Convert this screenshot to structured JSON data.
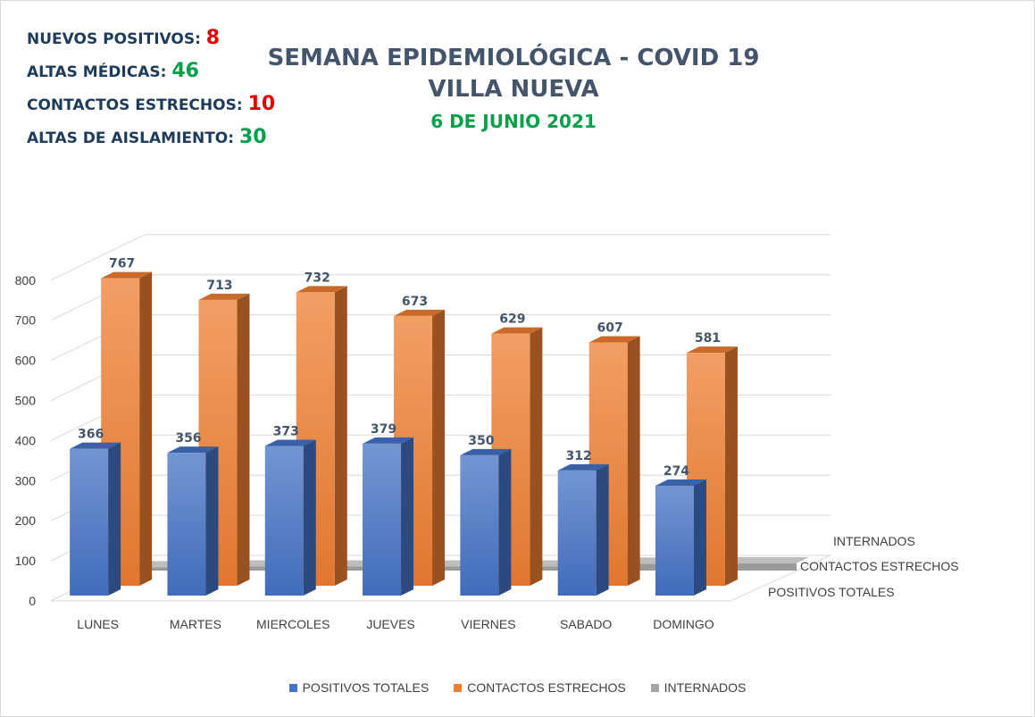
{
  "stats": [
    {
      "label": "NUEVOS POSITIVOS:",
      "value": "8",
      "color": "#e00000"
    },
    {
      "label": "ALTAS MÉDICAS:",
      "value": "46",
      "color": "#00a04a"
    },
    {
      "label": "CONTACTOS ESTRECHOS:",
      "value": "10",
      "color": "#e00000"
    },
    {
      "label": "ALTAS DE AISLAMIENTO:",
      "value": "30",
      "color": "#00a04a"
    }
  ],
  "title": {
    "line1": "SEMANA EPIDEMIOLÓGICA - COVID 19",
    "line2": "VILLA NUEVA",
    "date": "6 DE JUNIO 2021"
  },
  "chart_data": {
    "type": "bar",
    "three_d": true,
    "categories": [
      "LUNES",
      "MARTES",
      "MIERCOLES",
      "JUEVES",
      "VIERNES",
      "SABADO",
      "DOMINGO"
    ],
    "series": [
      {
        "name": "POSITIVOS TOTALES",
        "values": [
          366,
          356,
          373,
          379,
          350,
          312,
          274
        ],
        "color": "#4472c4"
      },
      {
        "name": "CONTACTOS ESTRECHOS",
        "values": [
          767,
          713,
          732,
          673,
          629,
          607,
          581
        ],
        "color": "#ed7d31"
      },
      {
        "name": "INTERNADOS",
        "values": [
          8,
          10,
          10,
          10,
          10,
          17,
          18
        ],
        "color": "#a5a5a5"
      }
    ],
    "depth_labels": [
      "INTERNADOS",
      "CONTACTOS ESTRECHOS",
      "POSITIVOS TOTALES"
    ],
    "y_ticks": [
      "0",
      "100",
      "200",
      "300",
      "400",
      "500",
      "600",
      "700",
      "800"
    ],
    "ylim": [
      0,
      800
    ],
    "grid": true,
    "legend_position": "bottom"
  }
}
